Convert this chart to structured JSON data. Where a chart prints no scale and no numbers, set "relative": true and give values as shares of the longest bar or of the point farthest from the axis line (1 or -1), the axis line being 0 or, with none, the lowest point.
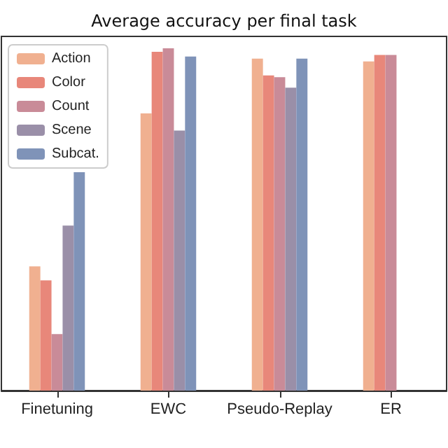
{
  "chart_data": {
    "type": "bar",
    "title": "Average accuracy per final task",
    "relative": true,
    "categories": [
      "Finetuning",
      "EWC",
      "Pseudo-Replay",
      "ER"
    ],
    "series": [
      {
        "name": "Action",
        "color": "#f0b090",
        "values": [
          0.363,
          0.81,
          0.97,
          0.962
        ]
      },
      {
        "name": "Color",
        "color": "#e8877a",
        "values": [
          0.322,
          0.99,
          0.921,
          0.981
        ]
      },
      {
        "name": "Count",
        "color": "#c98b98",
        "values": [
          0.165,
          1,
          0.916,
          0.981
        ]
      },
      {
        "name": "Scene",
        "color": "#9a8fa8",
        "values": [
          0.482,
          0.76,
          0.885,
          null
        ]
      },
      {
        "name": "Subcat.",
        "color": "#7f93b8",
        "values": [
          0.638,
          0.976,
          0.97,
          null
        ]
      }
    ],
    "legend": "top left"
  }
}
